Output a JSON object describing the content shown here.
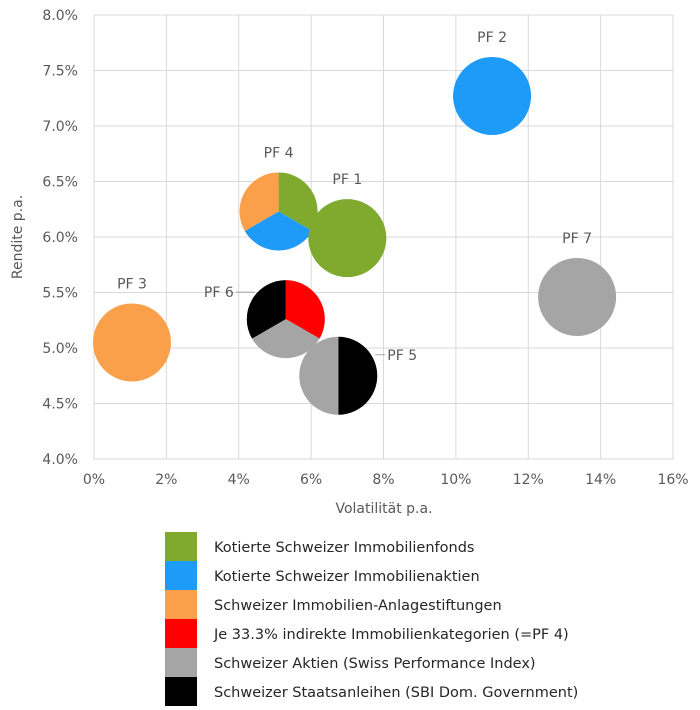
{
  "chart_data": {
    "type": "bubble-pie",
    "xlabel": "Volatilität p.a.",
    "ylabel": "Rendite p.a.",
    "xlim": [
      0,
      16
    ],
    "ylim": [
      4.0,
      8.0
    ],
    "x_ticks": [
      "0%",
      "2%",
      "4%",
      "6%",
      "8%",
      "10%",
      "12%",
      "14%",
      "16%"
    ],
    "y_ticks": [
      "4.0%",
      "4.5%",
      "5.0%",
      "5.5%",
      "6.0%",
      "6.5%",
      "7.0%",
      "7.5%",
      "8.0%"
    ],
    "grid": true,
    "legend_placement": "bottom",
    "categories": [
      {
        "key": "fonds",
        "name": "Kotierte Schweizer Immobilienfonds",
        "color": "#7FAA2E"
      },
      {
        "key": "aktien",
        "name": "Kotierte Schweizer Immobilienaktien",
        "color": "#1E9AF8"
      },
      {
        "key": "stift",
        "name": "Schweizer Immobilien-Anlagestiftungen",
        "color": "#FBA04A"
      },
      {
        "key": "mix",
        "name": "Je 33.3% indirekte Immobilienkategorien (=PF 4)",
        "color": "#FF0000"
      },
      {
        "key": "spi",
        "name": "Schweizer Aktien (Swiss Performance Index)",
        "color": "#A5A5A5"
      },
      {
        "key": "sbi",
        "name": "Schweizer Staatsanleihen (SBI Dom. Government)",
        "color": "#000000"
      }
    ],
    "portfolios": [
      {
        "label": "PF 2",
        "x": 11.0,
        "y": 7.27,
        "weights": {
          "aktien": 1
        },
        "label_pos": "top"
      },
      {
        "label": "PF 4",
        "x": 5.1,
        "y": 6.23,
        "weights": {
          "fonds": 0.333,
          "aktien": 0.333,
          "stift": 0.333
        },
        "label_pos": "top"
      },
      {
        "label": "PF 1",
        "x": 7.0,
        "y": 5.99,
        "weights": {
          "fonds": 1
        },
        "label_pos": "top"
      },
      {
        "label": "PF 7",
        "x": 13.35,
        "y": 5.46,
        "weights": {
          "spi": 1
        },
        "label_pos": "top"
      },
      {
        "label": "PF 3",
        "x": 1.05,
        "y": 5.05,
        "weights": {
          "stift": 1
        },
        "label_pos": "top"
      },
      {
        "label": "PF 6",
        "x": 5.3,
        "y": 5.26,
        "weights": {
          "mix": 0.333,
          "spi": 0.333,
          "sbi": 0.333
        },
        "label_pos": "left"
      },
      {
        "label": "PF 5",
        "x": 6.75,
        "y": 4.75,
        "weights": {
          "sbi": 0.5,
          "spi": 0.5
        },
        "label_pos": "right"
      }
    ]
  }
}
